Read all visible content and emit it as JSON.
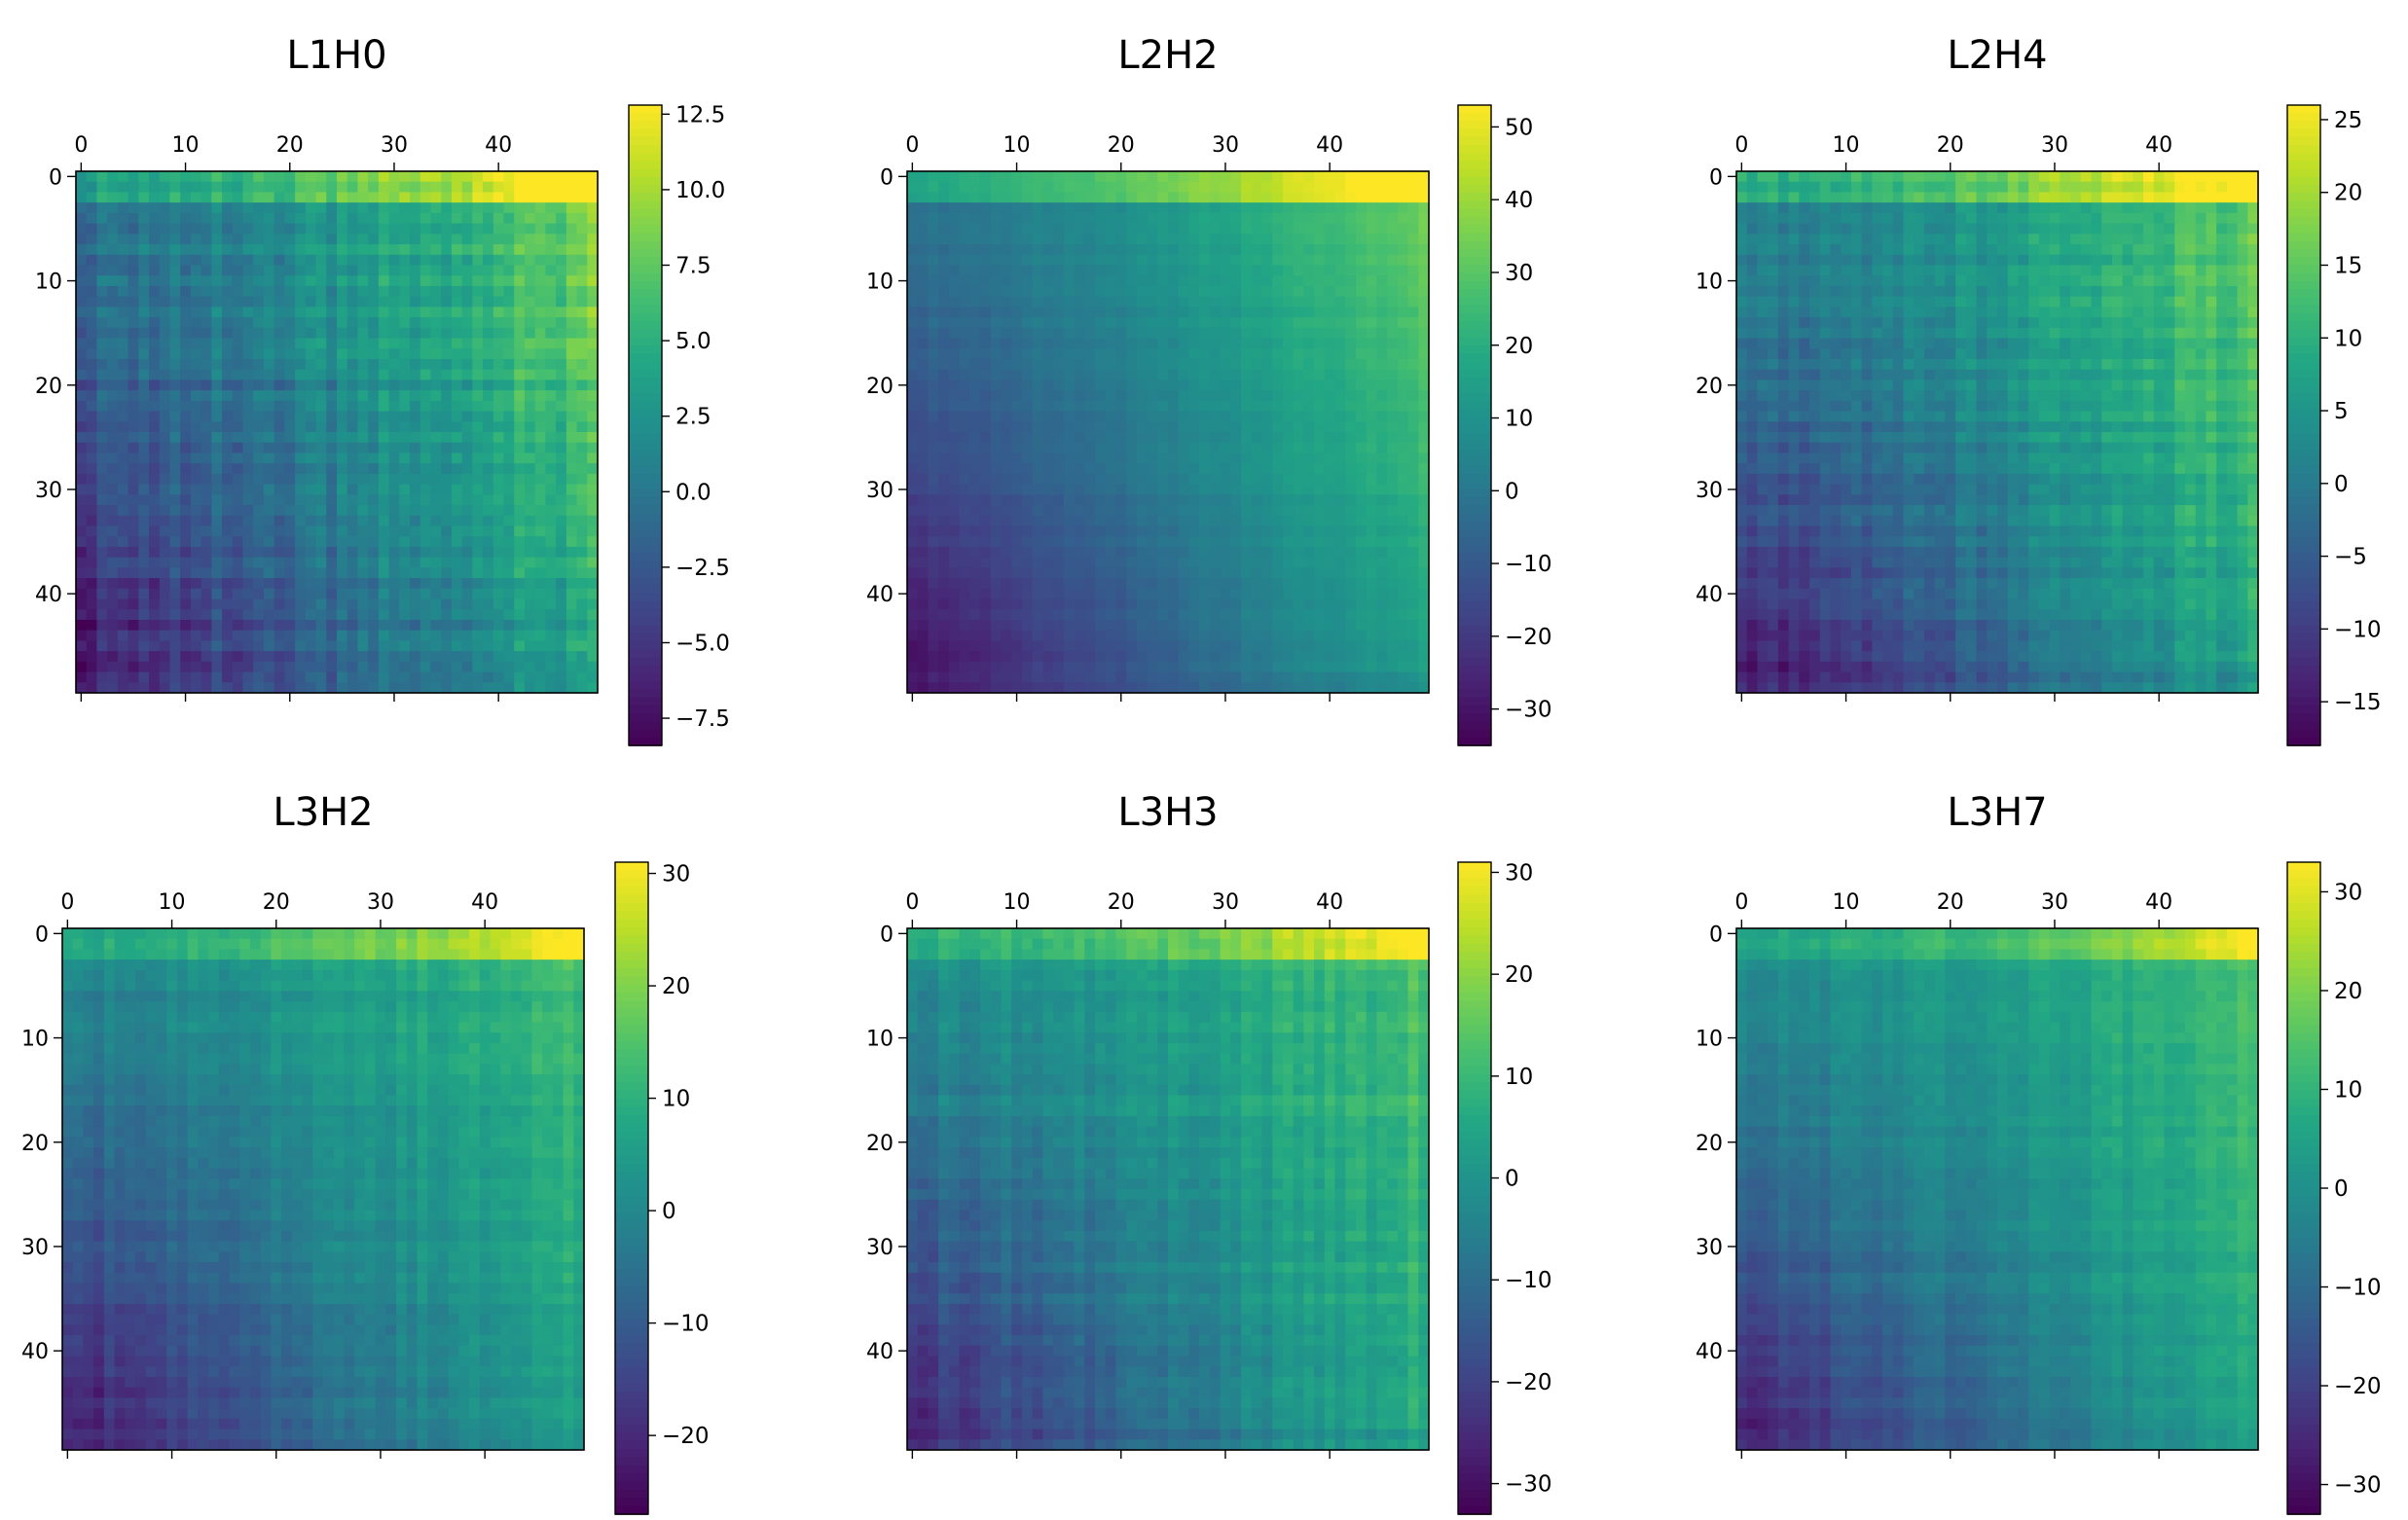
{
  "chart_data": [
    {
      "type": "heatmap",
      "title": "L1H0",
      "size": 50,
      "xticks": [
        0,
        10,
        20,
        30,
        40
      ],
      "yticks": [
        0,
        10,
        20,
        30,
        40
      ],
      "colorbar": {
        "range": [
          -8.4,
          12.8
        ],
        "ticks": [
          -7.5,
          -5.0,
          -2.5,
          0.0,
          2.5,
          5.0,
          7.5,
          10.0,
          12.5
        ],
        "tick_labels": [
          "−7.5",
          "−5.0",
          "−2.5",
          "0.0",
          "2.5",
          "5.0",
          "7.5",
          "10.0",
          "12.5"
        ]
      },
      "pattern": {
        "corner_top_right": 12.5,
        "right_edge": 9.0,
        "top_row": 8.0,
        "bottom_left": -7.5,
        "diagonal": 0.0,
        "noise": 1.5
      }
    },
    {
      "type": "heatmap",
      "title": "L2H2",
      "size": 50,
      "xticks": [
        0,
        10,
        20,
        30,
        40
      ],
      "yticks": [
        0,
        10,
        20,
        30,
        40
      ],
      "colorbar": {
        "range": [
          -35,
          53
        ],
        "ticks": [
          -30,
          -20,
          -10,
          0,
          10,
          20,
          30,
          40,
          50
        ],
        "tick_labels": [
          "−30",
          "−20",
          "−10",
          "0",
          "10",
          "20",
          "30",
          "40",
          "50"
        ]
      },
      "pattern": {
        "corner_top_right": 50,
        "right_edge": 35,
        "top_row": 38,
        "bottom_left": -32,
        "diagonal": 0,
        "noise": 2
      }
    },
    {
      "type": "heatmap",
      "title": "L2H4",
      "size": 50,
      "xticks": [
        0,
        10,
        20,
        30,
        40
      ],
      "yticks": [
        0,
        10,
        20,
        30,
        40
      ],
      "colorbar": {
        "range": [
          -18,
          26
        ],
        "ticks": [
          -15,
          -10,
          -5,
          0,
          5,
          10,
          15,
          20,
          25
        ],
        "tick_labels": [
          "−15",
          "−10",
          "−5",
          "0",
          "5",
          "10",
          "15",
          "20",
          "25"
        ]
      },
      "pattern": {
        "corner_top_right": 25,
        "right_edge": 16,
        "top_row": 16,
        "bottom_left": -16,
        "diagonal": 2,
        "noise": 2.5
      }
    },
    {
      "type": "heatmap",
      "title": "L3H2",
      "size": 50,
      "xticks": [
        0,
        10,
        20,
        30,
        40
      ],
      "yticks": [
        0,
        10,
        20,
        30,
        40
      ],
      "colorbar": {
        "range": [
          -27,
          31
        ],
        "ticks": [
          -20,
          -10,
          0,
          10,
          20,
          30
        ],
        "tick_labels": [
          "−20",
          "−10",
          "0",
          "10",
          "20",
          "30"
        ]
      },
      "pattern": {
        "corner_top_right": 30,
        "right_edge": 14,
        "top_row": 18,
        "bottom_left": -24,
        "diagonal": 0,
        "noise": 2.5
      }
    },
    {
      "type": "heatmap",
      "title": "L3H3",
      "size": 50,
      "xticks": [
        0,
        10,
        20,
        30,
        40
      ],
      "yticks": [
        0,
        10,
        20,
        30,
        40
      ],
      "colorbar": {
        "range": [
          -33,
          31
        ],
        "ticks": [
          -30,
          -20,
          -10,
          0,
          10,
          20,
          30
        ],
        "tick_labels": [
          "−30",
          "−20",
          "−10",
          "0",
          "10",
          "20",
          "30"
        ]
      },
      "pattern": {
        "corner_top_right": 30,
        "right_edge": 14,
        "top_row": 16,
        "bottom_left": -28,
        "diagonal": 0,
        "noise": 3
      }
    },
    {
      "type": "heatmap",
      "title": "L3H7",
      "size": 50,
      "xticks": [
        0,
        10,
        20,
        30,
        40
      ],
      "yticks": [
        0,
        10,
        20,
        30,
        40
      ],
      "colorbar": {
        "range": [
          -33,
          33
        ],
        "ticks": [
          -30,
          -20,
          -10,
          0,
          10,
          20,
          30
        ],
        "tick_labels": [
          "−30",
          "−20",
          "−10",
          "0",
          "10",
          "20",
          "30"
        ]
      },
      "pattern": {
        "corner_top_right": 30,
        "right_edge": 14,
        "top_row": 14,
        "bottom_left": -28,
        "diagonal": 0,
        "noise": 2.5
      }
    }
  ]
}
